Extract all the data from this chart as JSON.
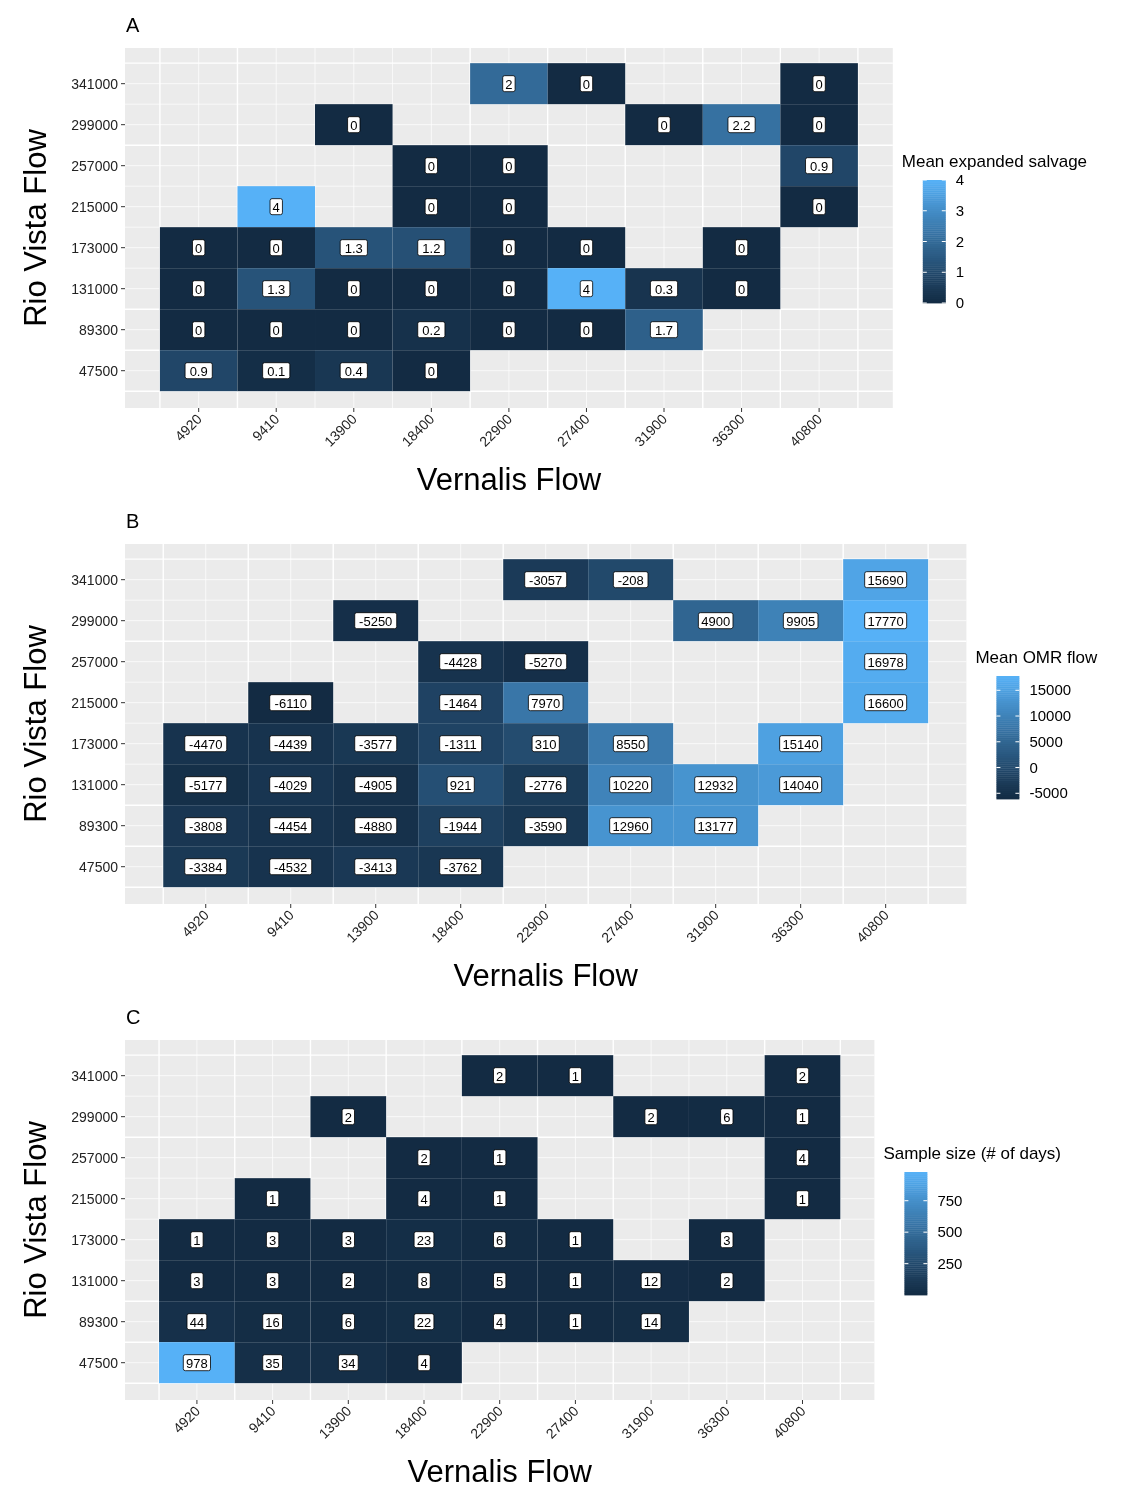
{
  "chart_data": [
    {
      "type": "heatmap",
      "title": "A",
      "xlabel": "Vernalis Flow",
      "ylabel": "Rio Vista Flow",
      "clabel": "Mean expanded salvage",
      "categories": [
        "4920",
        "9410",
        "13900",
        "18400",
        "22900",
        "27400",
        "31900",
        "36300",
        "40800"
      ],
      "y_categories": [
        "341000",
        "299000",
        "257000",
        "215000",
        "173000",
        "131000",
        "89300",
        "47500"
      ],
      "cells": [
        [
          null,
          null,
          null,
          null,
          2,
          0,
          null,
          null,
          0
        ],
        [
          null,
          null,
          0,
          null,
          null,
          null,
          0,
          2.2,
          0
        ],
        [
          null,
          null,
          null,
          0,
          0,
          null,
          null,
          null,
          0.9
        ],
        [
          null,
          4,
          null,
          0,
          0,
          null,
          null,
          null,
          0
        ],
        [
          0,
          0,
          1.3,
          1.2,
          0,
          0,
          null,
          0,
          null
        ],
        [
          0,
          1.3,
          0,
          0,
          0,
          4,
          0.3,
          0,
          null
        ],
        [
          0,
          0,
          0,
          0.2,
          0,
          0,
          1.7,
          null,
          null
        ],
        [
          0.9,
          0.1,
          0.4,
          0,
          null,
          null,
          null,
          null,
          null
        ]
      ],
      "clim": [
        0,
        4
      ],
      "cticks": [
        0,
        1,
        2,
        3,
        4
      ],
      "data_labels": true,
      "grid": true
    },
    {
      "type": "heatmap",
      "title": "B",
      "xlabel": "Vernalis Flow",
      "ylabel": "Rio Vista Flow",
      "clabel": "Mean OMR flow",
      "categories": [
        "4920",
        "9410",
        "13900",
        "18400",
        "22900",
        "27400",
        "31900",
        "36300",
        "40800"
      ],
      "y_categories": [
        "341000",
        "299000",
        "257000",
        "215000",
        "173000",
        "131000",
        "89300",
        "47500"
      ],
      "cells": [
        [
          null,
          null,
          null,
          null,
          -3057,
          -208,
          null,
          null,
          15690
        ],
        [
          null,
          null,
          -5250,
          null,
          null,
          null,
          4900,
          9905,
          17770
        ],
        [
          null,
          null,
          null,
          -4428,
          -5270,
          null,
          null,
          null,
          16978
        ],
        [
          null,
          -6110,
          null,
          -1464,
          7970,
          null,
          null,
          null,
          16600
        ],
        [
          -4470,
          -4439,
          -3577,
          -1311,
          310,
          8550,
          null,
          15140,
          null
        ],
        [
          -5177,
          -4029,
          -4905,
          921,
          -2776,
          10220,
          12932,
          14040,
          null
        ],
        [
          -3808,
          -4454,
          -4880,
          -1944,
          -3590,
          12960,
          13177,
          null,
          null
        ],
        [
          -3384,
          -4532,
          -3413,
          -3762,
          null,
          null,
          null,
          null,
          null
        ]
      ],
      "clim": [
        -6110,
        17770
      ],
      "cticks": [
        -5000,
        0,
        5000,
        10000,
        15000
      ],
      "data_labels": true,
      "grid": true
    },
    {
      "type": "heatmap",
      "title": "C",
      "xlabel": "Vernalis Flow",
      "ylabel": "Rio Vista Flow",
      "clabel": "Sample size (# of days)",
      "categories": [
        "4920",
        "9410",
        "13900",
        "18400",
        "22900",
        "27400",
        "31900",
        "36300",
        "40800"
      ],
      "y_categories": [
        "341000",
        "299000",
        "257000",
        "215000",
        "173000",
        "131000",
        "89300",
        "47500"
      ],
      "cells": [
        [
          null,
          null,
          null,
          null,
          2,
          1,
          null,
          null,
          2
        ],
        [
          null,
          null,
          2,
          null,
          null,
          null,
          2,
          6,
          1
        ],
        [
          null,
          null,
          null,
          2,
          1,
          null,
          null,
          null,
          4
        ],
        [
          null,
          1,
          null,
          4,
          1,
          null,
          null,
          null,
          1
        ],
        [
          1,
          3,
          3,
          23,
          6,
          1,
          null,
          3,
          null
        ],
        [
          3,
          3,
          2,
          8,
          5,
          1,
          12,
          2,
          null
        ],
        [
          44,
          16,
          6,
          22,
          4,
          1,
          14,
          null,
          null
        ],
        [
          978,
          35,
          34,
          4,
          null,
          null,
          null,
          null,
          null
        ]
      ],
      "clim": [
        1,
        978
      ],
      "cticks": [
        250,
        500,
        750
      ],
      "data_labels": true,
      "grid": true
    }
  ]
}
